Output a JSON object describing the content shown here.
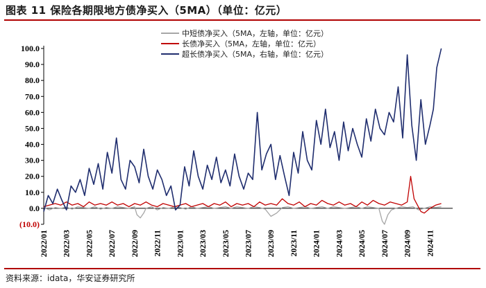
{
  "title": "图表 11 保险各期限地方债净买入（5MA）（单位：亿元）",
  "source": "资料来源：idata，华安证券研究所",
  "chart_data": {
    "type": "line",
    "title": "图表 11 保险各期限地方债净买入（5MA）（单位：亿元）",
    "ylim": [
      -10,
      100
    ],
    "y_ticks": [
      {
        "value": 100,
        "label": "100.0"
      },
      {
        "value": 90,
        "label": "90.0"
      },
      {
        "value": 80,
        "label": "80.0"
      },
      {
        "value": 70,
        "label": "70.0"
      },
      {
        "value": 60,
        "label": "60.0"
      },
      {
        "value": 50,
        "label": "50.0"
      },
      {
        "value": 40,
        "label": "40.0"
      },
      {
        "value": 30,
        "label": "30.0"
      },
      {
        "value": 20,
        "label": "20.0"
      },
      {
        "value": 10,
        "label": "10.0"
      },
      {
        "value": 0,
        "label": "0.0"
      },
      {
        "value": -10,
        "label": "(10.0)"
      }
    ],
    "x_range": [
      0,
      36
    ],
    "x_ticks": [
      {
        "value": 0,
        "label": "2022/01"
      },
      {
        "value": 2,
        "label": "2022/03"
      },
      {
        "value": 4,
        "label": "2022/05"
      },
      {
        "value": 6,
        "label": "2022/07"
      },
      {
        "value": 8,
        "label": "2022/09"
      },
      {
        "value": 10,
        "label": "2022/11"
      },
      {
        "value": 12,
        "label": "2023/01"
      },
      {
        "value": 14,
        "label": "2023/03"
      },
      {
        "value": 16,
        "label": "2023/05"
      },
      {
        "value": 18,
        "label": "2023/07"
      },
      {
        "value": 20,
        "label": "2023/09"
      },
      {
        "value": 22,
        "label": "2023/11"
      },
      {
        "value": 24,
        "label": "2024/01"
      },
      {
        "value": 26,
        "label": "2024/03"
      },
      {
        "value": 28,
        "label": "2024/05"
      },
      {
        "value": 30,
        "label": "2024/07"
      },
      {
        "value": 32,
        "label": "2024/09"
      },
      {
        "value": 34,
        "label": "2024/11"
      }
    ],
    "series": [
      {
        "name": "中短债净买入（5MA，左轴，单位：亿元）",
        "color": "#a6a6a6",
        "x": [
          0,
          0.5,
          1,
          1.5,
          2,
          2.5,
          3,
          3.5,
          4,
          4.5,
          5,
          5.5,
          6,
          6.5,
          7,
          7.5,
          8,
          8.2,
          8.5,
          8.8,
          9,
          9.5,
          10,
          10.5,
          11,
          11.5,
          12,
          12.5,
          13,
          13.5,
          14,
          14.5,
          15,
          15.5,
          16,
          16.5,
          17,
          17.5,
          18,
          18.5,
          19,
          19.5,
          20,
          20.5,
          21,
          21.5,
          22,
          22.5,
          23,
          23.5,
          24,
          24.5,
          25,
          25.5,
          26,
          26.5,
          27,
          27.5,
          28,
          28.5,
          29,
          29.5,
          29.8,
          30,
          30.3,
          30.6,
          31,
          31.5,
          32,
          32.5,
          33,
          33.5,
          34,
          34.5,
          35
        ],
        "values": [
          0.5,
          -1,
          0.5,
          0,
          0.8,
          -0.5,
          1,
          0.5,
          0,
          1,
          -0.5,
          0.5,
          0,
          1,
          0.5,
          0,
          1,
          -4,
          -6,
          -3,
          0,
          1,
          -1,
          0.5,
          0,
          1,
          0.5,
          -0.5,
          1,
          0,
          0.5,
          1,
          0,
          0.5,
          1,
          0,
          1,
          0.5,
          0,
          1,
          0.5,
          -0.5,
          -5,
          -3,
          0.5,
          1,
          0,
          0.5,
          1,
          0,
          0.5,
          1,
          0,
          1,
          0.5,
          0,
          0.5,
          1,
          0,
          1,
          0.5,
          0,
          -8,
          -10,
          -4,
          -1,
          0,
          1,
          0.5,
          1,
          -1,
          0,
          1,
          0.5,
          1
        ]
      },
      {
        "name": "长债净买入（5MA，左轴，单位：亿元）",
        "color": "#c00000",
        "x": [
          0,
          0.5,
          1,
          1.5,
          2,
          2.5,
          3,
          3.5,
          4,
          4.5,
          5,
          5.5,
          6,
          6.5,
          7,
          7.5,
          8,
          8.5,
          9,
          9.5,
          10,
          10.5,
          11,
          11.5,
          12,
          12.5,
          13,
          13.5,
          14,
          14.5,
          15,
          15.5,
          16,
          16.5,
          17,
          17.5,
          18,
          18.5,
          19,
          19.5,
          20,
          20.5,
          21,
          21.5,
          22,
          22.5,
          23,
          23.5,
          24,
          24.5,
          25,
          25.5,
          26,
          26.5,
          27,
          27.5,
          28,
          28.5,
          29,
          29.5,
          30,
          30.5,
          31,
          31.5,
          32,
          32.3,
          32.6,
          32.9,
          33.2,
          33.5,
          34,
          34.5,
          35
        ],
        "values": [
          1,
          2,
          3,
          2,
          4,
          2,
          3,
          1,
          4,
          2,
          3,
          2,
          4,
          2,
          3,
          1,
          3,
          2,
          4,
          2,
          1,
          3,
          2,
          1,
          2,
          3,
          1,
          2,
          3,
          1,
          3,
          2,
          4,
          1,
          3,
          2,
          3,
          1,
          4,
          2,
          3,
          2,
          6,
          3,
          2,
          4,
          1,
          3,
          2,
          5,
          3,
          2,
          4,
          2,
          3,
          1,
          4,
          2,
          5,
          3,
          2,
          4,
          3,
          2,
          4,
          20,
          6,
          2,
          -2,
          -3,
          0,
          2,
          3
        ]
      },
      {
        "name": "超长债净买入（5MA，右轴，单位：亿元）",
        "color": "#1f2d6e",
        "x": [
          0,
          0.4,
          0.8,
          1.2,
          1.6,
          2,
          2.4,
          2.8,
          3.2,
          3.6,
          4,
          4.4,
          4.8,
          5.2,
          5.6,
          6,
          6.4,
          6.8,
          7.2,
          7.6,
          8,
          8.4,
          8.8,
          9.2,
          9.6,
          10,
          10.4,
          10.8,
          11.2,
          11.6,
          12,
          12.4,
          12.8,
          13.2,
          13.6,
          14,
          14.4,
          14.8,
          15.2,
          15.6,
          16,
          16.4,
          16.8,
          17.2,
          17.6,
          18,
          18.4,
          18.8,
          19.2,
          19.6,
          20,
          20.4,
          20.8,
          21.2,
          21.6,
          22,
          22.4,
          22.8,
          23.2,
          23.6,
          24,
          24.4,
          24.8,
          25.2,
          25.6,
          26,
          26.4,
          26.8,
          27.2,
          27.6,
          28,
          28.4,
          28.8,
          29.2,
          29.6,
          30,
          30.4,
          30.8,
          31.2,
          31.6,
          32,
          32.4,
          32.8,
          33.2,
          33.6,
          34,
          34.3,
          34.6,
          35
        ],
        "values": [
          -2,
          8,
          3,
          12,
          5,
          -1,
          14,
          10,
          18,
          8,
          25,
          15,
          28,
          12,
          35,
          22,
          44,
          18,
          12,
          30,
          26,
          16,
          37,
          20,
          12,
          24,
          18,
          8,
          14,
          -1,
          2,
          26,
          14,
          36,
          20,
          12,
          27,
          18,
          32,
          16,
          24,
          14,
          34,
          20,
          12,
          22,
          18,
          60,
          24,
          34,
          40,
          18,
          33,
          20,
          8,
          35,
          22,
          48,
          30,
          24,
          55,
          40,
          62,
          38,
          48,
          30,
          54,
          36,
          50,
          40,
          32,
          56,
          42,
          62,
          50,
          46,
          60,
          54,
          76,
          44,
          96,
          52,
          30,
          68,
          40,
          52,
          62,
          88,
          100
        ]
      }
    ]
  }
}
